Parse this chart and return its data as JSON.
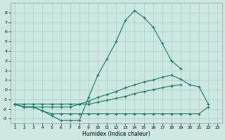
{
  "x": [
    1,
    2,
    3,
    4,
    5,
    6,
    7,
    8,
    9,
    10,
    11,
    12,
    13,
    14,
    15,
    16,
    17,
    18,
    19,
    20,
    21,
    22,
    23
  ],
  "y1": [
    -1.5,
    -1.8,
    -1.8,
    -2.2,
    -2.7,
    -3.2,
    -3.2,
    -3.2,
    -0.8,
    1.5,
    3.2,
    5.0,
    7.2,
    8.2,
    7.5,
    6.5,
    4.8,
    3.0,
    2.2,
    null,
    null,
    null,
    null
  ],
  "y2": [
    -1.5,
    -1.8,
    -1.8,
    -1.8,
    -1.8,
    -1.8,
    -1.8,
    -1.5,
    -1.2,
    -0.8,
    -0.5,
    -0.2,
    0.2,
    0.5,
    0.8,
    1.0,
    1.3,
    1.5,
    1.1,
    0.5,
    0.3,
    -1.5,
    null
  ],
  "y3": [
    -1.5,
    -1.5,
    -1.5,
    -1.5,
    -1.5,
    -1.5,
    -1.5,
    -1.5,
    -1.5,
    -1.3,
    -1.1,
    -0.9,
    -0.7,
    -0.4,
    -0.2,
    0.0,
    0.2,
    0.4,
    0.5,
    null,
    null,
    null,
    null
  ],
  "y4": [
    -1.5,
    -1.8,
    -1.8,
    -2.2,
    -2.5,
    -2.5,
    -2.5,
    -2.5,
    -2.5,
    -2.5,
    -2.5,
    -2.5,
    -2.5,
    -2.5,
    -2.5,
    -2.5,
    -2.5,
    -2.5,
    -2.5,
    -2.5,
    -2.5,
    -1.8,
    null
  ],
  "xlabel": "Humidex (Indice chaleur)",
  "ylim": [
    -3.5,
    9.0
  ],
  "xlim": [
    0.5,
    23.5
  ],
  "yticks": [
    -3,
    -2,
    -1,
    0,
    1,
    2,
    3,
    4,
    5,
    6,
    7,
    8
  ],
  "xticks": [
    1,
    2,
    3,
    4,
    5,
    6,
    7,
    8,
    9,
    10,
    11,
    12,
    13,
    14,
    15,
    16,
    17,
    18,
    19,
    20,
    21,
    22,
    23
  ],
  "line_color": "#1a7a6a",
  "bg_color": "#cce8e0",
  "grid_color": "#aacfc8"
}
